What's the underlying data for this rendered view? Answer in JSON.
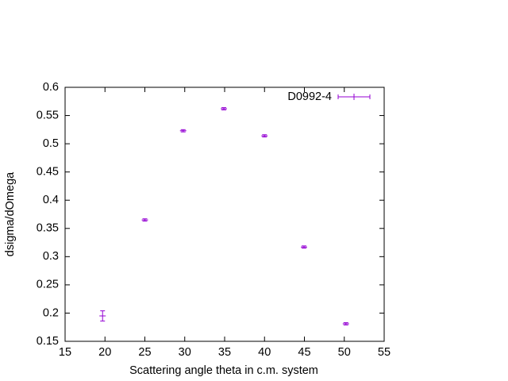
{
  "chart_data": {
    "type": "scatter",
    "x_label": "Scattering angle theta in c.m. system",
    "y_label": "dsigma/dOmega",
    "series": [
      {
        "name": "D0992-4",
        "color": "#9400d3",
        "x": [
          19.7,
          25,
          29.8,
          34.9,
          40,
          44.95,
          50.2
        ],
        "values": [
          0.195,
          0.365,
          0.523,
          0.562,
          0.514,
          0.317,
          0.181
        ],
        "errors": [
          0.009,
          0.002,
          0.002,
          0.002,
          0.002,
          0.002,
          0.002
        ]
      }
    ],
    "xlim": [
      15,
      55
    ],
    "xticks": [
      15,
      20,
      25,
      30,
      35,
      40,
      45,
      50,
      55
    ],
    "ylim": [
      0.15,
      0.6
    ],
    "yticks": [
      0.15,
      0.2,
      0.25,
      0.3,
      0.35,
      0.4,
      0.45,
      0.5,
      0.55,
      0.6
    ],
    "legend": "top-right"
  }
}
